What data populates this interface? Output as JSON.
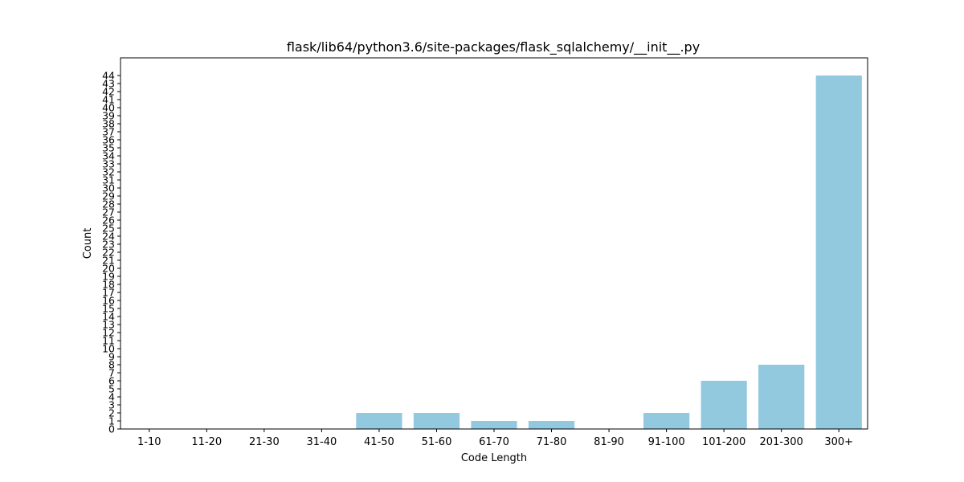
{
  "chart_data": {
    "type": "bar",
    "title": "flask/lib64/python3.6/site-packages/flask_sqlalchemy/__init__.py",
    "xlabel": "Code Length",
    "ylabel": "Count",
    "categories": [
      "1-10",
      "11-20",
      "21-30",
      "31-40",
      "41-50",
      "51-60",
      "61-70",
      "71-80",
      "81-90",
      "91-100",
      "101-200",
      "201-300",
      "300+"
    ],
    "values": [
      0,
      0,
      0,
      0,
      2,
      2,
      1,
      1,
      0,
      2,
      6,
      8,
      44
    ],
    "ylim": [
      0,
      46.2
    ],
    "yticks": [
      0,
      1,
      2,
      3,
      4,
      5,
      6,
      7,
      8,
      9,
      10,
      11,
      12,
      13,
      14,
      15,
      16,
      17,
      18,
      19,
      20,
      21,
      22,
      23,
      24,
      25,
      26,
      27,
      28,
      29,
      30,
      31,
      32,
      33,
      34,
      35,
      36,
      37,
      38,
      39,
      40,
      41,
      42,
      43,
      44
    ],
    "bar_color": "#92c9df",
    "grid": false,
    "legend": "none"
  }
}
